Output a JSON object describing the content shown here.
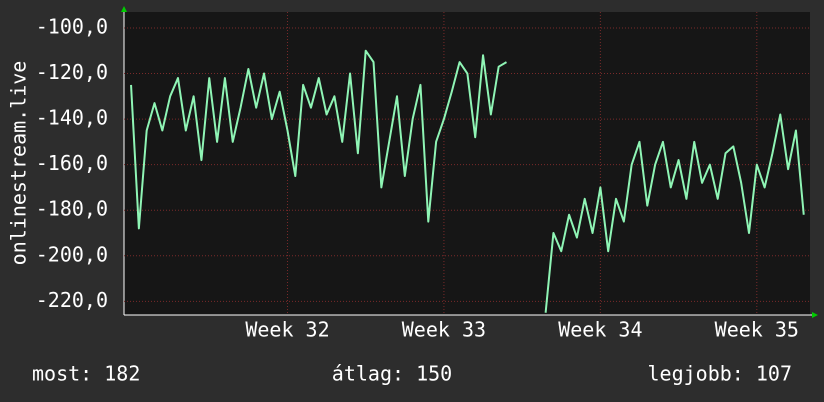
{
  "chart_data": {
    "type": "line",
    "y_label": "onlinestream.live",
    "x": [
      31.0,
      31.05,
      31.1,
      31.15,
      31.2,
      31.25,
      31.3,
      31.35,
      31.4,
      31.45,
      31.5,
      31.55,
      31.6,
      31.65,
      31.7,
      31.75,
      31.8,
      31.85,
      31.9,
      31.95,
      32.0,
      32.05,
      32.1,
      32.15,
      32.2,
      32.25,
      32.3,
      32.35,
      32.4,
      32.45,
      32.5,
      32.55,
      32.6,
      32.65,
      32.7,
      32.75,
      32.8,
      32.85,
      32.9,
      32.95,
      33.0,
      33.05,
      33.1,
      33.15,
      33.2,
      33.25,
      33.3,
      33.35,
      33.4,
      33.45,
      33.5,
      33.55,
      33.6,
      33.65,
      33.7,
      33.75,
      33.8,
      33.85,
      33.9,
      33.95,
      34.0,
      34.05,
      34.1,
      34.15,
      34.2,
      34.25,
      34.3,
      34.35,
      34.4,
      34.45,
      34.5,
      34.55,
      34.6,
      34.65,
      34.7,
      34.75,
      34.8,
      34.85,
      34.9,
      34.95,
      35.0,
      35.05,
      35.1,
      35.15,
      35.2,
      35.25,
      35.3
    ],
    "series": [
      {
        "color": "#8ff5b5",
        "values": [
          -125,
          -188,
          -145,
          -133,
          -145,
          -130,
          -122,
          -145,
          -130,
          -158,
          -122,
          -150,
          -122,
          -150,
          -135,
          -118,
          -135,
          -120,
          -140,
          -128,
          -145,
          -165,
          -125,
          -135,
          -122,
          -138,
          -130,
          -150,
          -120,
          -155,
          -110,
          -115,
          -170,
          -150,
          -130,
          -165,
          -140,
          -125,
          -185,
          -150,
          -140,
          -128,
          -115,
          -120,
          -148,
          -112,
          -138,
          -117,
          -115,
          null,
          null,
          null,
          null,
          -225,
          -190,
          -198,
          -182,
          -192,
          -175,
          -190,
          -170,
          -198,
          -175,
          -185,
          -160,
          -150,
          -178,
          -160,
          -150,
          -170,
          -158,
          -175,
          -150,
          -168,
          -160,
          -175,
          -155,
          -152,
          -168,
          -190,
          -160,
          -170,
          -155,
          -138,
          -162,
          -145,
          -182
        ]
      }
    ],
    "xlim": [
      30.955,
      35.34
    ],
    "ylim": [
      -226,
      -93
    ],
    "xticks": [
      {
        "value": 32,
        "label": "Week 32"
      },
      {
        "value": 33,
        "label": "Week 33"
      },
      {
        "value": 34,
        "label": "Week 34"
      },
      {
        "value": 35,
        "label": "Week 35"
      }
    ],
    "yticks": [
      {
        "value": -100,
        "label": "-100,0"
      },
      {
        "value": -120,
        "label": "-120,0"
      },
      {
        "value": -140,
        "label": "-140,0"
      },
      {
        "value": -160,
        "label": "-160,0"
      },
      {
        "value": -180,
        "label": "-180,0"
      },
      {
        "value": -200,
        "label": "-200,0"
      },
      {
        "value": -220,
        "label": "-220,0"
      }
    ],
    "grid": true,
    "annotations": [
      "most: 182",
      "átlag: 150",
      "legjobb: 107"
    ]
  }
}
